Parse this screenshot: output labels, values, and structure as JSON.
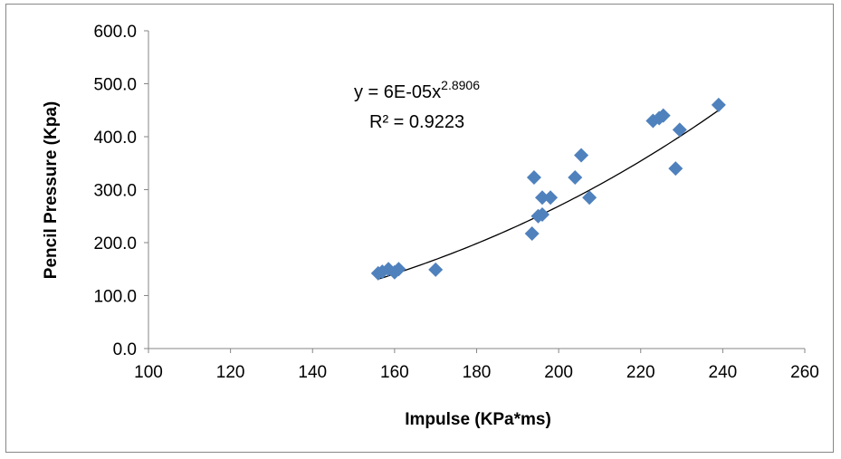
{
  "chart_data": {
    "type": "scatter",
    "title": "",
    "xlabel": "Impulse (KPa*ms)",
    "ylabel": "Pencil Pressure (Kpa)",
    "xlim": [
      100,
      260
    ],
    "ylim": [
      0,
      600
    ],
    "x_ticks": [
      "100",
      "120",
      "140",
      "160",
      "180",
      "200",
      "220",
      "240",
      "260"
    ],
    "y_ticks": [
      "0.0",
      "100.0",
      "200.0",
      "300.0",
      "400.0",
      "500.0",
      "600.0"
    ],
    "grid": false,
    "legend": "none",
    "marker": "diamond",
    "marker_color": "#4F81BD",
    "trendline": {
      "type": "power",
      "coefficient": 6e-05,
      "exponent": 2.8906,
      "color": "#000000",
      "equation_prefix": "y = 6E-05x",
      "equation_exponent": "2.8906",
      "r_squared_label": "R² = 0.9223"
    },
    "points": [
      {
        "x": 156,
        "y": 142
      },
      {
        "x": 157,
        "y": 145
      },
      {
        "x": 158.5,
        "y": 150
      },
      {
        "x": 160,
        "y": 144
      },
      {
        "x": 161,
        "y": 150
      },
      {
        "x": 170,
        "y": 149
      },
      {
        "x": 193.5,
        "y": 217
      },
      {
        "x": 194,
        "y": 323
      },
      {
        "x": 195,
        "y": 250
      },
      {
        "x": 196,
        "y": 253
      },
      {
        "x": 196,
        "y": 285
      },
      {
        "x": 198,
        "y": 285
      },
      {
        "x": 204,
        "y": 323
      },
      {
        "x": 205.5,
        "y": 365
      },
      {
        "x": 207.5,
        "y": 285
      },
      {
        "x": 223,
        "y": 430
      },
      {
        "x": 224.5,
        "y": 435
      },
      {
        "x": 225.5,
        "y": 440
      },
      {
        "x": 228.5,
        "y": 340
      },
      {
        "x": 229.5,
        "y": 413
      },
      {
        "x": 239,
        "y": 460
      }
    ]
  }
}
